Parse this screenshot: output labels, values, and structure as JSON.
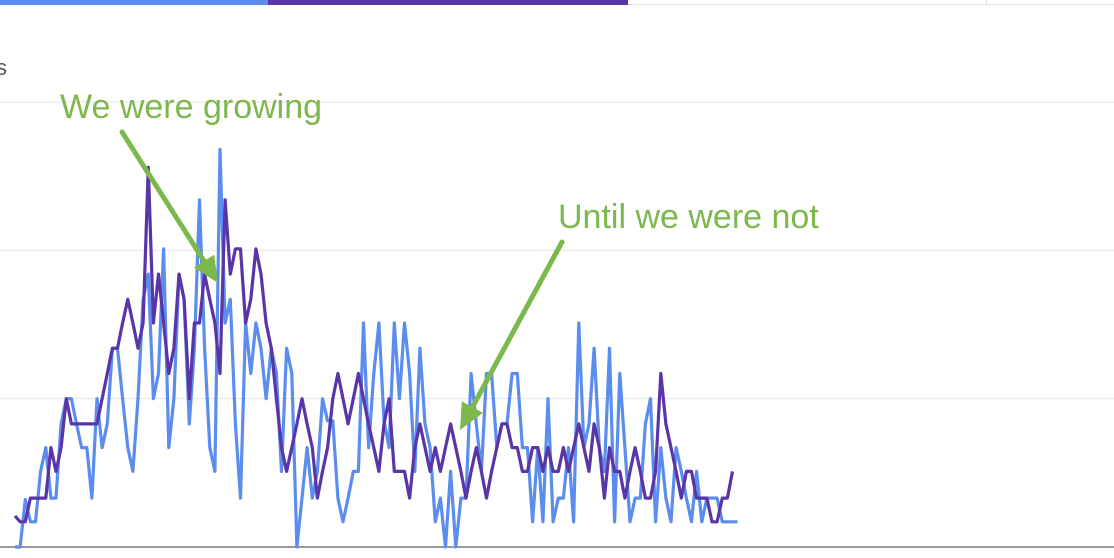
{
  "colors": {
    "series_a": "#5b8def",
    "series_b": "#5a35a8",
    "annotation": "#7cb84c",
    "grid": "#e6e6e6",
    "axis": "#999999"
  },
  "header": {
    "tabs": [
      {
        "color": "#5b8def"
      },
      {
        "color": "#5a35a8"
      }
    ]
  },
  "axis_fragment": "s",
  "annotations": {
    "growing": "We were growing",
    "not": "Until we were not"
  },
  "chart_data": {
    "type": "line",
    "title": "",
    "xlabel": "",
    "ylabel": "",
    "ylim": [
      0,
      30
    ],
    "grid": true,
    "gridlines": [
      0,
      10,
      20,
      30
    ],
    "series": [
      {
        "color": "#5b8def",
        "values": [
          0,
          0,
          3.2,
          1.7,
          1.7,
          5.1,
          6.7,
          3.3,
          3.3,
          8.3,
          10.0,
          10.0,
          8.3,
          6.7,
          6.7,
          3.3,
          10.0,
          6.7,
          8.3,
          13.4,
          13.4,
          10.0,
          6.7,
          5.1,
          10.0,
          16.7,
          18.4,
          10.0,
          11.7,
          20.1,
          6.7,
          10.0,
          18.4,
          16.7,
          8.3,
          13.4,
          23.4,
          13.4,
          6.7,
          5.1,
          26.8,
          15.1,
          16.7,
          8.3,
          3.3,
          15.1,
          11.7,
          15.1,
          13.4,
          10.0,
          13.4,
          11.7,
          5.1,
          13.4,
          11.7,
          0,
          3.3,
          6.7,
          3.3,
          5.1,
          10.0,
          8.5,
          8.5,
          3.3,
          1.7,
          3.3,
          5.1,
          5.1,
          15.1,
          6.7,
          11.7,
          15.1,
          8.5,
          6.7,
          15.1,
          10.0,
          15.1,
          11.7,
          5.1,
          13.4,
          8.3,
          6.7,
          1.7,
          3.3,
          0,
          5.1,
          0,
          3.3,
          3.3,
          11.7,
          8.3,
          5.1,
          11.7,
          11.7,
          6.7,
          8.3,
          8.3,
          11.7,
          11.7,
          6.7,
          6.7,
          1.7,
          6.7,
          1.7,
          10.0,
          1.7,
          3.3,
          3.3,
          6.7,
          1.7,
          15.1,
          6.7,
          8.3,
          13.4,
          6.7,
          5.1,
          13.4,
          1.7,
          11.7,
          6.7,
          1.7,
          3.3,
          3.3,
          8.3,
          10.0,
          1.7,
          6.7,
          3.3,
          1.7,
          6.7,
          5.1,
          3.3,
          1.7,
          5.1,
          1.7,
          3.3,
          3.3,
          3.3,
          1.7,
          1.7,
          1.7,
          1.7
        ]
      },
      {
        "color": "#5a35a8",
        "values": [
          2.1,
          1.7,
          1.7,
          3.3,
          3.3,
          3.3,
          3.3,
          6.7,
          5.1,
          6.7,
          10.0,
          8.3,
          8.3,
          8.3,
          8.3,
          8.3,
          8.3,
          10.0,
          11.7,
          13.4,
          13.4,
          15.1,
          16.7,
          15.1,
          13.4,
          15.1,
          25.6,
          15.1,
          18.4,
          15.1,
          11.7,
          13.4,
          18.4,
          16.7,
          10.0,
          15.1,
          15.1,
          18.4,
          16.7,
          15.1,
          11.7,
          23.4,
          18.4,
          20.1,
          20.1,
          15.1,
          16.7,
          20.1,
          18.4,
          15.1,
          13.4,
          10.0,
          6.7,
          5.1,
          6.7,
          8.3,
          10.0,
          8.3,
          6.7,
          3.3,
          5.1,
          6.7,
          10.0,
          11.7,
          10.0,
          8.3,
          10.0,
          11.7,
          10.0,
          8.3,
          6.7,
          5.1,
          8.3,
          10.0,
          5.1,
          5.1,
          5.1,
          3.3,
          6.7,
          8.3,
          6.7,
          5.1,
          6.7,
          5.1,
          6.7,
          8.3,
          6.7,
          5.1,
          3.3,
          5.1,
          6.7,
          5.1,
          3.3,
          5.1,
          6.7,
          8.3,
          8.3,
          6.7,
          6.7,
          5.1,
          5.1,
          6.7,
          6.7,
          5.1,
          6.7,
          5.1,
          5.1,
          6.7,
          5.1,
          6.7,
          8.3,
          6.7,
          5.1,
          8.3,
          6.7,
          3.3,
          6.7,
          5.1,
          5.1,
          3.3,
          5.1,
          6.7,
          5.1,
          3.3,
          3.3,
          5.1,
          11.7,
          8.3,
          6.7,
          5.1,
          3.3,
          5.1,
          5.1,
          3.3,
          3.3,
          3.3,
          1.7,
          1.7,
          3.3,
          3.3,
          5.1
        ]
      }
    ]
  }
}
